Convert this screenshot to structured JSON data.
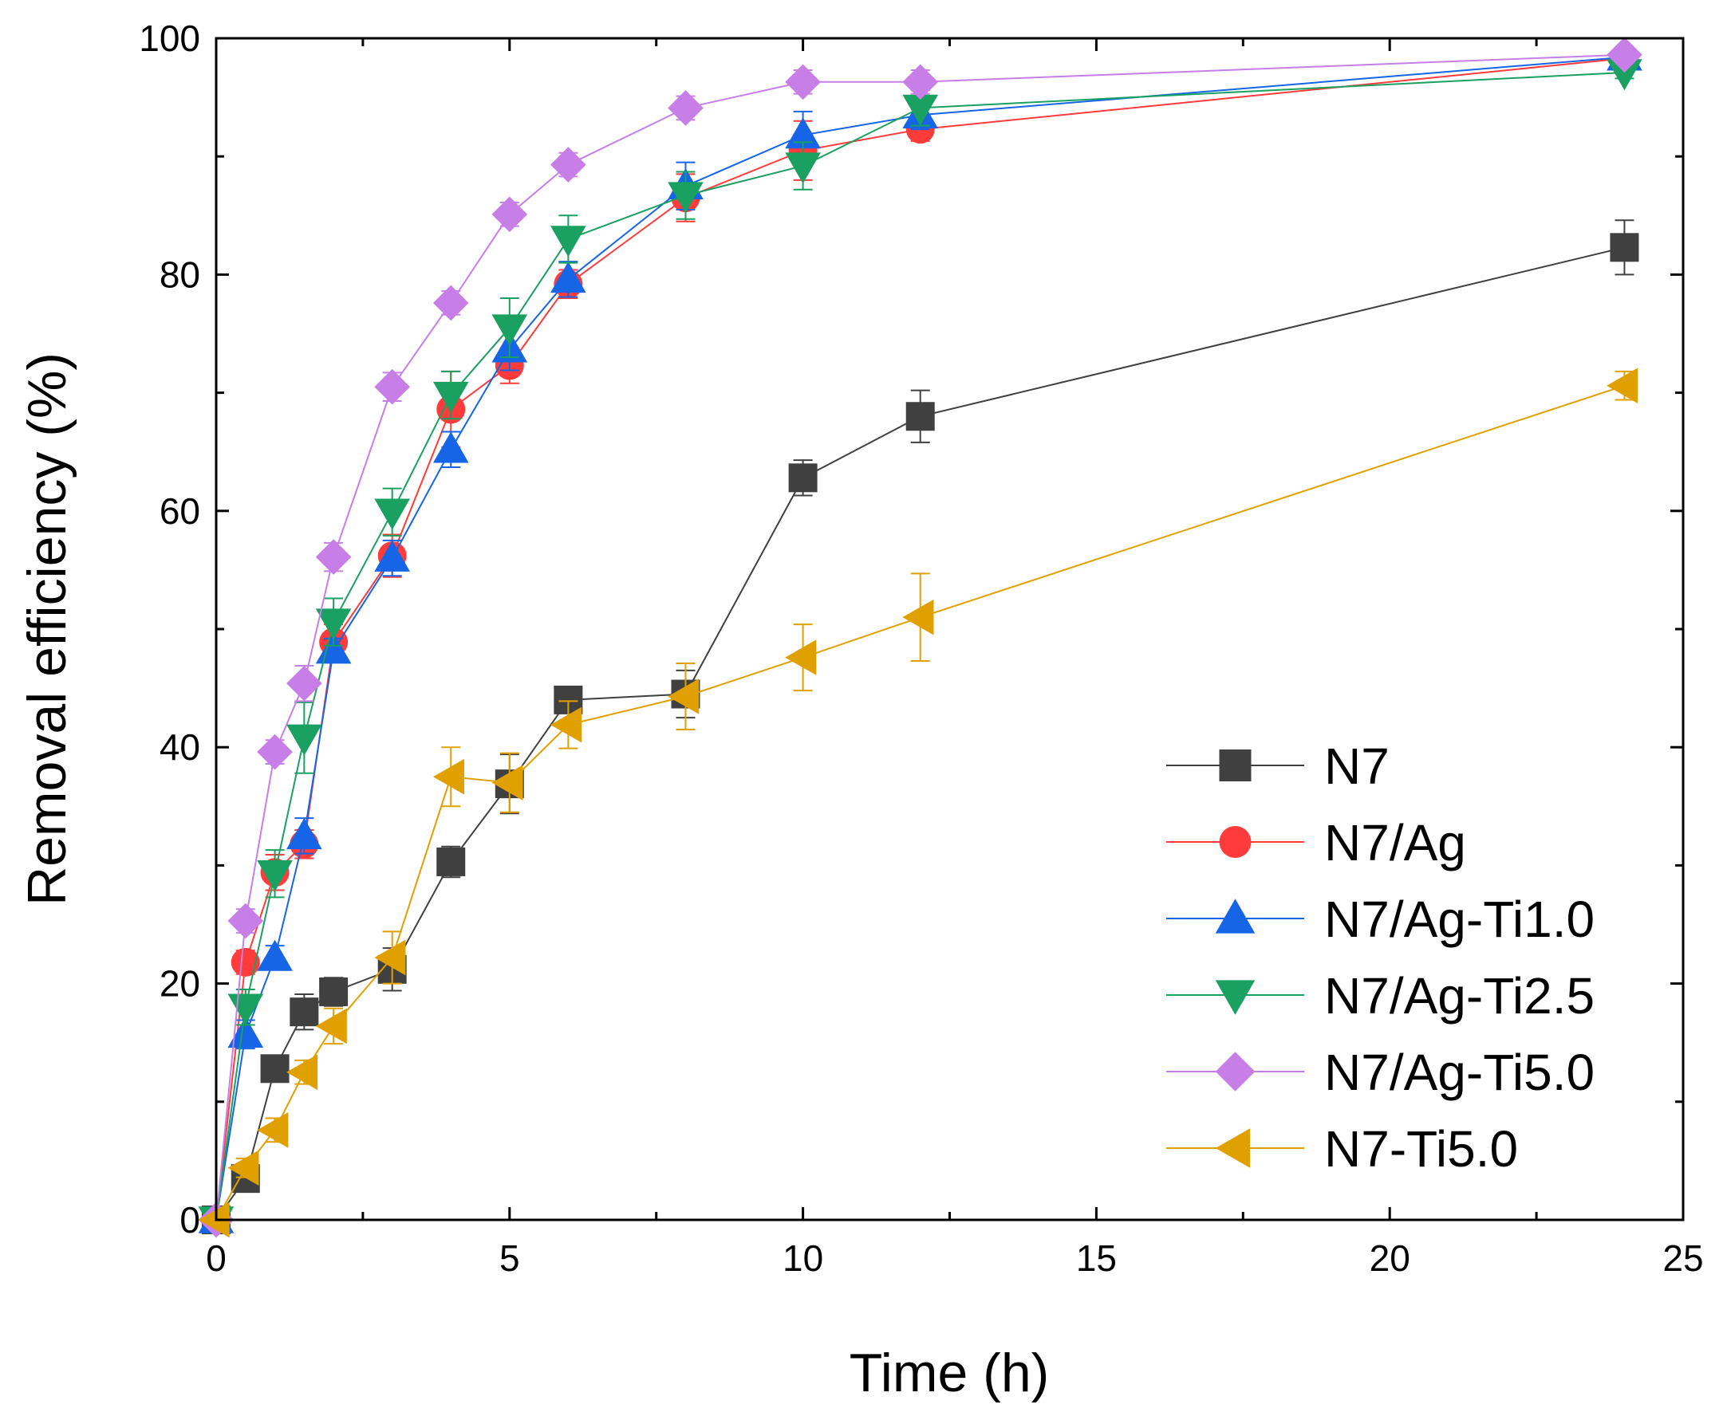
{
  "chart_data": {
    "type": "line",
    "title": "",
    "xlabel": "Time (h)",
    "ylabel": "Removal efficiency (%)",
    "xlim": [
      0,
      25
    ],
    "ylim": [
      0,
      100
    ],
    "xticks": [
      0,
      5,
      10,
      15,
      20,
      25
    ],
    "yticks": [
      0,
      20,
      40,
      60,
      80,
      100
    ],
    "x_tick_labels": [
      "0",
      "5",
      "10",
      "15",
      "20",
      "25"
    ],
    "y_tick_labels": [
      "0",
      "20",
      "40",
      "60",
      "80",
      "100"
    ],
    "grid": false,
    "legend_position": "bottom-right",
    "series": [
      {
        "name": "N7",
        "color": "#404040",
        "marker": "square",
        "x": [
          0,
          0.5,
          1,
          1.5,
          2,
          3,
          4,
          5,
          6,
          8,
          10,
          12,
          24
        ],
        "y": [
          0,
          3.5,
          12.8,
          17.6,
          19.3,
          21.2,
          30.3,
          36.9,
          44.0,
          44.5,
          62.8,
          68.0,
          82.3
        ],
        "err": [
          0,
          0.8,
          1.0,
          1.5,
          1.2,
          1.8,
          1.3,
          2.5,
          1.0,
          2.0,
          1.5,
          2.2,
          2.3
        ]
      },
      {
        "name": "N7/Ag",
        "color": "#ff3b3b",
        "marker": "circle",
        "x": [
          0,
          0.5,
          1,
          1.5,
          2,
          3,
          4,
          5,
          6,
          8,
          10,
          12,
          24
        ],
        "y": [
          0,
          21.8,
          29.4,
          31.8,
          48.9,
          56.2,
          68.6,
          72.3,
          79.2,
          86.5,
          90.5,
          92.3,
          98.3
        ],
        "err": [
          0,
          1.0,
          1.5,
          1.2,
          1.5,
          1.8,
          3.2,
          1.5,
          1.2,
          2.0,
          2.5,
          1.0,
          0.5
        ]
      },
      {
        "name": "N7/Ag-Ti1.0",
        "color": "#1565e6",
        "marker": "triangle-up",
        "x": [
          0,
          0.5,
          1,
          1.5,
          2,
          3,
          4,
          5,
          6,
          8,
          10,
          12,
          24
        ],
        "y": [
          0,
          15.7,
          22.2,
          32.5,
          48.2,
          56.0,
          65.2,
          73.7,
          79.6,
          87.5,
          91.8,
          93.5,
          98.4
        ],
        "err": [
          0,
          1.2,
          1.0,
          1.5,
          1.0,
          1.5,
          1.5,
          1.8,
          1.5,
          2.0,
          2.0,
          1.2,
          0.5
        ]
      },
      {
        "name": "N7/Ag-Ti2.5",
        "color": "#1aa060",
        "marker": "triangle-down",
        "x": [
          0,
          0.5,
          1,
          1.5,
          2,
          3,
          4,
          5,
          6,
          8,
          10,
          12,
          24
        ],
        "y": [
          0,
          18.0,
          29.3,
          40.8,
          50.6,
          59.9,
          69.8,
          75.5,
          83.0,
          86.7,
          89.2,
          94.1,
          97.1
        ],
        "err": [
          0,
          1.5,
          2.0,
          3.0,
          2.0,
          2.0,
          2.0,
          2.5,
          2.0,
          2.0,
          2.0,
          1.5,
          0.5
        ]
      },
      {
        "name": "N7/Ag-Ti5.0",
        "color": "#c77ee6",
        "marker": "diamond",
        "x": [
          0,
          0.5,
          1,
          1.5,
          2,
          3,
          4,
          5,
          6,
          8,
          10,
          12,
          24
        ],
        "y": [
          0,
          25.3,
          39.6,
          45.4,
          56.1,
          70.5,
          77.6,
          85.1,
          89.3,
          94.1,
          96.3,
          96.3,
          98.6
        ],
        "err": [
          0,
          1.0,
          1.0,
          1.5,
          1.2,
          1.2,
          1.0,
          1.0,
          1.0,
          1.0,
          1.0,
          1.0,
          0.5
        ]
      },
      {
        "name": "N7-Ti5.0",
        "color": "#e0a000",
        "marker": "triangle-left",
        "x": [
          0,
          0.5,
          1,
          1.5,
          2,
          3,
          4,
          5,
          6,
          8,
          10,
          12,
          24
        ],
        "y": [
          0,
          4.4,
          7.6,
          12.5,
          16.4,
          22.2,
          37.5,
          37.0,
          41.9,
          44.3,
          47.6,
          51.0,
          70.6
        ],
        "err": [
          0,
          0.8,
          1.0,
          1.0,
          1.5,
          2.2,
          2.5,
          2.5,
          2.0,
          2.8,
          2.8,
          3.7,
          1.2
        ]
      }
    ]
  }
}
